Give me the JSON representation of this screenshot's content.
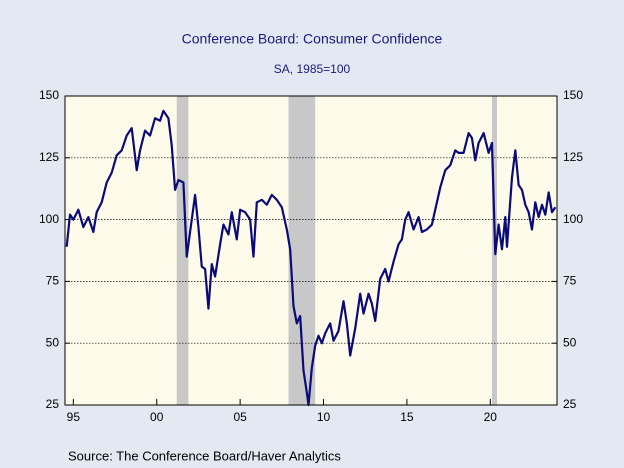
{
  "chart_data": {
    "type": "line",
    "title": "Conference Board: Consumer Confidence",
    "subtitle": "SA, 1985=100",
    "source": "Source:  The Conference Board/Haver Analytics",
    "xlim": [
      1994.5,
      2024.0
    ],
    "xticks": [
      {
        "value": 1995,
        "label": "95"
      },
      {
        "value": 2000,
        "label": "00"
      },
      {
        "value": 2005,
        "label": "05"
      },
      {
        "value": 2010,
        "label": "10"
      },
      {
        "value": 2015,
        "label": "15"
      },
      {
        "value": 2020,
        "label": "20"
      }
    ],
    "ylim": [
      25,
      150
    ],
    "yticks": [
      25,
      50,
      75,
      100,
      125,
      150
    ],
    "y2lim": [
      25,
      150
    ],
    "y2ticks": [
      25,
      50,
      75,
      100,
      125,
      150
    ],
    "grid": true,
    "recessions": [
      [
        2001.2,
        2001.9
      ],
      [
        2007.9,
        2009.5
      ],
      [
        2020.1,
        2020.4
      ]
    ],
    "recession_color": "#c8c8c8",
    "x": [
      1994.6,
      1994.8,
      1995.0,
      1995.3,
      1995.6,
      1995.9,
      1996.2,
      1996.4,
      1996.7,
      1997.0,
      1997.3,
      1997.6,
      1997.9,
      1998.2,
      1998.5,
      1998.8,
      1999.0,
      1999.3,
      1999.6,
      1999.9,
      2000.2,
      2000.4,
      2000.7,
      2000.9,
      2001.1,
      2001.3,
      2001.6,
      2001.8,
      2002.0,
      2002.3,
      2002.5,
      2002.7,
      2002.9,
      2003.1,
      2003.3,
      2003.5,
      2003.8,
      2004.0,
      2004.3,
      2004.5,
      2004.8,
      2005.0,
      2005.3,
      2005.6,
      2005.8,
      2006.0,
      2006.3,
      2006.6,
      2006.9,
      2007.2,
      2007.5,
      2007.8,
      2008.0,
      2008.2,
      2008.4,
      2008.6,
      2008.8,
      2009.0,
      2009.1,
      2009.3,
      2009.5,
      2009.7,
      2009.9,
      2010.1,
      2010.4,
      2010.6,
      2010.9,
      2011.2,
      2011.4,
      2011.6,
      2011.9,
      2012.2,
      2012.4,
      2012.7,
      2012.9,
      2013.1,
      2013.4,
      2013.7,
      2013.9,
      2014.2,
      2014.5,
      2014.7,
      2014.9,
      2015.1,
      2015.4,
      2015.7,
      2015.9,
      2016.2,
      2016.5,
      2016.8,
      2017.0,
      2017.3,
      2017.6,
      2017.9,
      2018.1,
      2018.4,
      2018.7,
      2018.9,
      2019.1,
      2019.3,
      2019.6,
      2019.9,
      2020.1,
      2020.3,
      2020.5,
      2020.7,
      2020.9,
      2021.0,
      2021.3,
      2021.5,
      2021.7,
      2021.9,
      2022.1,
      2022.3,
      2022.5,
      2022.7,
      2022.9,
      2023.1,
      2023.3,
      2023.5,
      2023.7,
      2023.9
    ],
    "series": [
      {
        "color": "#0a0a78",
        "values": [
          89,
          102,
          100,
          104,
          97,
          101,
          95,
          103,
          107,
          115,
          119,
          126,
          128,
          134,
          137,
          120,
          128,
          136,
          134,
          141,
          140,
          144,
          141,
          130,
          112,
          116,
          115,
          85,
          95,
          110,
          97,
          81,
          80,
          64,
          82,
          77,
          90,
          98,
          94,
          103,
          92,
          104,
          103,
          100,
          85,
          107,
          108,
          106,
          110,
          108,
          105,
          96,
          88,
          65,
          58,
          61,
          39,
          30,
          25,
          40,
          49,
          53,
          50,
          54,
          58,
          51,
          55,
          67,
          58,
          45,
          56,
          70,
          62,
          70,
          66,
          59,
          76,
          80,
          75,
          83,
          90,
          92,
          100,
          103,
          96,
          101,
          95,
          96,
          98,
          107,
          113,
          120,
          122,
          128,
          127,
          127,
          135,
          133,
          124,
          131,
          135,
          127,
          131,
          86,
          98,
          88,
          101,
          89,
          117,
          128,
          114,
          112,
          106,
          103,
          96,
          107,
          101,
          106,
          102,
          111,
          103,
          105
        ]
      }
    ]
  }
}
